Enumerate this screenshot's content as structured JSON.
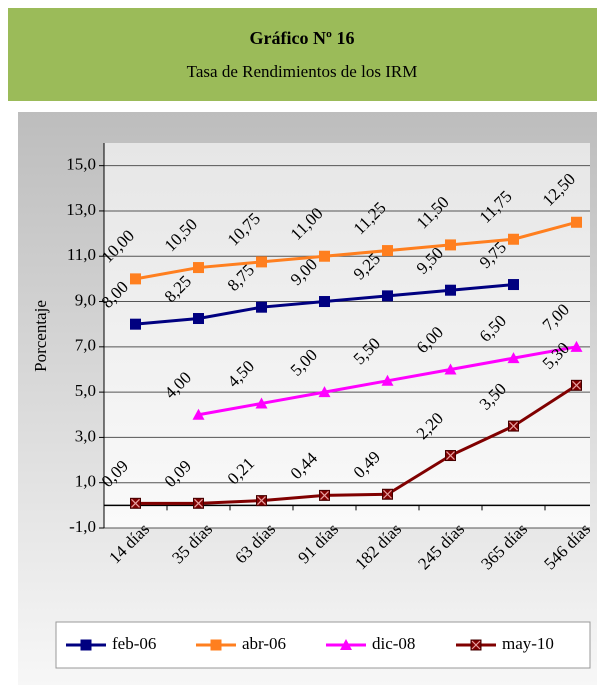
{
  "chart_data": {
    "type": "line",
    "title": "Gráfico Nº 16",
    "subtitle": "Tasa de Rendimientos de los IRM",
    "y_label": "Porcentaje",
    "categories": [
      "14 días",
      "35 días",
      "63 días",
      "91 días",
      "182 días",
      "245 días",
      "365 días",
      "546 días"
    ],
    "ylim": [
      -1,
      16
    ],
    "yticks": [
      {
        "value": -1,
        "label": "-1,0"
      },
      {
        "value": 1,
        "label": "1,0"
      },
      {
        "value": 3,
        "label": "3,0"
      },
      {
        "value": 5,
        "label": "5,0"
      },
      {
        "value": 7,
        "label": "7,0"
      },
      {
        "value": 9,
        "label": "9,0"
      },
      {
        "value": 11,
        "label": "11,0"
      },
      {
        "value": 13,
        "label": "13,0"
      },
      {
        "value": 15,
        "label": "15,0"
      }
    ],
    "grid": true,
    "legend": "bottom",
    "series": [
      {
        "name": "feb-06",
        "color": "#000080",
        "marker": "square",
        "values": [
          8.0,
          8.25,
          8.75,
          9.0,
          9.25,
          9.5,
          9.75,
          null
        ],
        "value_labels": [
          "8,00",
          "8,25",
          "8,75",
          "9,00",
          "9,25",
          "9,50",
          "9,75",
          null
        ]
      },
      {
        "name": "abr-06",
        "color": "#ff7f1f",
        "marker": "square",
        "values": [
          10.0,
          10.5,
          10.75,
          11.0,
          11.25,
          11.5,
          11.75,
          12.5
        ],
        "value_labels": [
          "10,00",
          "10,50",
          "10,75",
          "11,00",
          "11,25",
          "11,50",
          "11,75",
          "12,50"
        ]
      },
      {
        "name": "dic-08",
        "color": "#ff00ff",
        "marker": "triangle",
        "values": [
          null,
          4.0,
          4.5,
          5.0,
          5.5,
          6.0,
          6.5,
          7.0
        ],
        "value_labels": [
          null,
          "4,00",
          "4,50",
          "5,00",
          "5,50",
          "6,00",
          "6,50",
          "7,00"
        ]
      },
      {
        "name": "may-10",
        "color": "#800000",
        "marker": "xsquare",
        "values": [
          0.09,
          0.09,
          0.21,
          0.44,
          0.49,
          2.2,
          3.5,
          5.3
        ],
        "value_labels": [
          "0,09",
          "0,09",
          "0,21",
          "0,44",
          "0,49",
          "2,20",
          "3,50",
          "5,30"
        ]
      }
    ]
  }
}
